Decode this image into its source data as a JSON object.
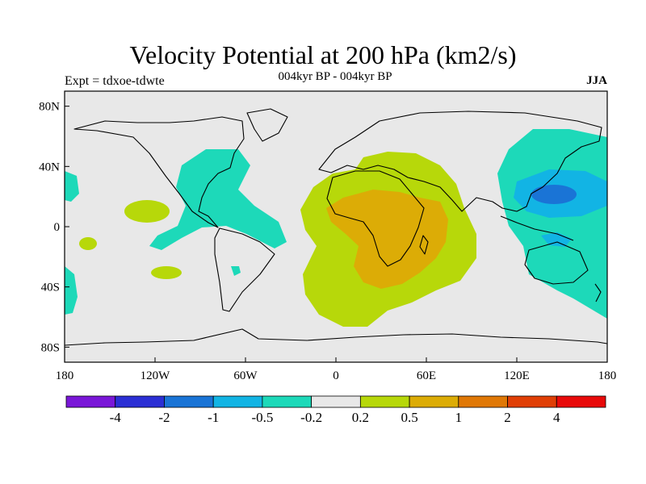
{
  "title": "Velocity Potential at 200 hPa (km2/s)",
  "subtitle": "004kyr BP - 004kyr BP",
  "left_label": "Expt = tdxoe-tdwte",
  "right_label": "JJA",
  "x_ticks": [
    "180",
    "120W",
    "60W",
    "0",
    "60E",
    "120E",
    "180"
  ],
  "y_ticks": [
    "80N",
    "40N",
    "0",
    "40S",
    "80S"
  ],
  "colorbar": {
    "labels": [
      "-4",
      "-2",
      "-1",
      "-0.5",
      "-0.2",
      "0.2",
      "0.5",
      "1",
      "2",
      "4"
    ],
    "colors": [
      "#7a17d8",
      "#2b2fd4",
      "#1a74d6",
      "#12b4e4",
      "#1dd9b9",
      "#e8e8e8",
      "#b7d80a",
      "#dcac06",
      "#e07806",
      "#e03f06",
      "#e80a0a"
    ]
  },
  "map_colors": {
    "background": "#e8e8e8",
    "neg_02": "#1dd9b9",
    "neg_05": "#12b4e4",
    "neg_1": "#1a74d6",
    "pos_02": "#b7d80a",
    "pos_05": "#dcac06"
  }
}
